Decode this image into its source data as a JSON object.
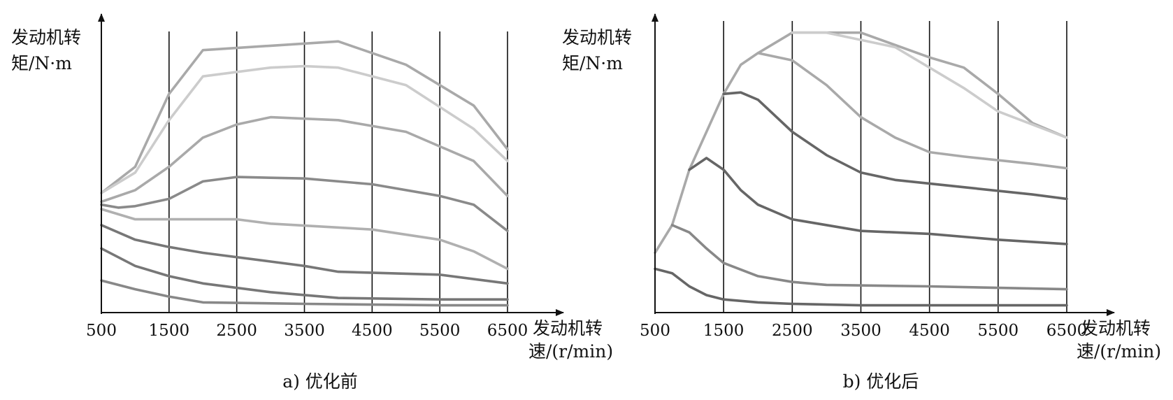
{
  "chart_data": [
    {
      "type": "line",
      "title": "",
      "caption": "a) 优化前",
      "ylabel_line1": "发动机转",
      "ylabel_line2": "矩/N·m",
      "xlabel_line1": "发动机转",
      "xlabel_line2": "速/(r/min)",
      "x_ticks": [
        "500",
        "1500",
        "2500",
        "3500",
        "4500",
        "5500",
        "6500"
      ],
      "xlim": [
        500,
        6500
      ],
      "ylim": [
        0,
        100
      ],
      "grid": "vertical",
      "series": [
        {
          "color": "#a9a9a9",
          "points": [
            [
              500,
              41
            ],
            [
              1000,
              50
            ],
            [
              1500,
              75
            ],
            [
              2000,
              90
            ],
            [
              3000,
              91.5
            ],
            [
              4000,
              93
            ],
            [
              5000,
              85
            ],
            [
              6000,
              71
            ],
            [
              6500,
              56
            ]
          ]
        },
        {
          "color": "#cccccc",
          "points": [
            [
              500,
              41
            ],
            [
              1000,
              48
            ],
            [
              1500,
              66
            ],
            [
              2000,
              81
            ],
            [
              3000,
              84
            ],
            [
              3500,
              84.5
            ],
            [
              4000,
              84
            ],
            [
              5000,
              78
            ],
            [
              6000,
              63
            ],
            [
              6500,
              52
            ]
          ]
        },
        {
          "color": "#a9a9a9",
          "points": [
            [
              500,
              38
            ],
            [
              1000,
              42
            ],
            [
              1500,
              50
            ],
            [
              2000,
              60
            ],
            [
              2500,
              64.5
            ],
            [
              3000,
              67
            ],
            [
              4000,
              66
            ],
            [
              5000,
              62
            ],
            [
              6000,
              52
            ],
            [
              6500,
              40
            ]
          ]
        },
        {
          "color": "#8a8a8a",
          "points": [
            [
              500,
              37
            ],
            [
              750,
              36
            ],
            [
              1000,
              36.5
            ],
            [
              1500,
              39
            ],
            [
              2000,
              45
            ],
            [
              2500,
              46.5
            ],
            [
              3500,
              46
            ],
            [
              4500,
              44
            ],
            [
              5500,
              40
            ],
            [
              6000,
              37
            ],
            [
              6500,
              28
            ]
          ]
        },
        {
          "color": "#b0b0b0",
          "points": [
            [
              500,
              35.5
            ],
            [
              1000,
              32
            ],
            [
              1500,
              32
            ],
            [
              2500,
              32
            ],
            [
              3000,
              30.5
            ],
            [
              4500,
              28.5
            ],
            [
              5500,
              25
            ],
            [
              6000,
              21
            ],
            [
              6500,
              15
            ]
          ]
        },
        {
          "color": "#777777",
          "points": [
            [
              500,
              30
            ],
            [
              1000,
              25
            ],
            [
              1500,
              22.5
            ],
            [
              2000,
              20.5
            ],
            [
              3000,
              17.5
            ],
            [
              3500,
              16
            ],
            [
              4000,
              14
            ],
            [
              5500,
              13
            ],
            [
              6500,
              10
            ]
          ]
        },
        {
          "color": "#777777",
          "points": [
            [
              500,
              22
            ],
            [
              1000,
              16
            ],
            [
              1500,
              12.5
            ],
            [
              2000,
              10
            ],
            [
              3000,
              7
            ],
            [
              4000,
              5
            ],
            [
              5500,
              4.5
            ],
            [
              6500,
              4.5
            ]
          ]
        },
        {
          "color": "#888888",
          "points": [
            [
              500,
              11
            ],
            [
              1000,
              8
            ],
            [
              1500,
              5.5
            ],
            [
              2000,
              3.5
            ],
            [
              3500,
              3
            ],
            [
              5500,
              2.5
            ],
            [
              6500,
              2.5
            ]
          ]
        }
      ]
    },
    {
      "type": "line",
      "title": "",
      "caption": "b) 优化后",
      "ylabel_line1": "发动机转",
      "ylabel_line2": "矩/N·m",
      "xlabel_line1": "发动机转",
      "xlabel_line2": "速/(r/min)",
      "x_ticks": [
        "500",
        "1500",
        "2500",
        "3500",
        "4500",
        "5500",
        "6500"
      ],
      "xlim": [
        500,
        6500
      ],
      "ylim": [
        0,
        100
      ],
      "grid": "vertical",
      "series": [
        {
          "color": "#a9a9a9",
          "points": [
            [
              500,
              20.5
            ],
            [
              750,
              30
            ],
            [
              1000,
              49
            ],
            [
              1500,
              75
            ],
            [
              1750,
              85
            ],
            [
              2000,
              89
            ],
            [
              2500,
              96
            ],
            [
              3500,
              96
            ],
            [
              4500,
              87.5
            ],
            [
              5000,
              84
            ],
            [
              5500,
              75
            ],
            [
              6000,
              65
            ],
            [
              6500,
              60
            ]
          ]
        },
        {
          "color": "#cccccc",
          "points": [
            [
              2500,
              96
            ],
            [
              3000,
              96
            ],
            [
              4000,
              91
            ],
            [
              4500,
              84
            ],
            [
              5000,
              77
            ],
            [
              5500,
              69
            ],
            [
              6500,
              60
            ]
          ]
        },
        {
          "color": "#a9a9a9",
          "points": [
            [
              2000,
              89
            ],
            [
              2500,
              86.5
            ],
            [
              3000,
              78
            ],
            [
              3500,
              67
            ],
            [
              4000,
              60
            ],
            [
              4500,
              55
            ],
            [
              5000,
              53.5
            ],
            [
              6000,
              51
            ],
            [
              6500,
              49.5
            ]
          ]
        },
        {
          "color": "#666666",
          "points": [
            [
              1500,
              75
            ],
            [
              1750,
              75.5
            ],
            [
              2000,
              73
            ],
            [
              2500,
              62
            ],
            [
              3000,
              54
            ],
            [
              3500,
              48
            ],
            [
              4000,
              45.5
            ],
            [
              5000,
              43
            ],
            [
              6000,
              40.5
            ],
            [
              6500,
              39
            ]
          ]
        },
        {
          "color": "#666666",
          "points": [
            [
              1000,
              49
            ],
            [
              1250,
              53
            ],
            [
              1500,
              49
            ],
            [
              1750,
              42
            ],
            [
              2000,
              37
            ],
            [
              2500,
              32
            ],
            [
              3500,
              28
            ],
            [
              4500,
              27
            ],
            [
              5500,
              25
            ],
            [
              6500,
              23.5
            ]
          ]
        },
        {
          "color": "#888888",
          "points": [
            [
              750,
              30
            ],
            [
              1000,
              27.5
            ],
            [
              1250,
              22
            ],
            [
              1500,
              17
            ],
            [
              2000,
              12.5
            ],
            [
              2500,
              10.5
            ],
            [
              3000,
              9.5
            ],
            [
              4500,
              9
            ],
            [
              5500,
              8.5
            ],
            [
              6500,
              8
            ]
          ]
        },
        {
          "color": "#666666",
          "points": [
            [
              500,
              15
            ],
            [
              750,
              13.5
            ],
            [
              1000,
              9
            ],
            [
              1250,
              6
            ],
            [
              1500,
              4.5
            ],
            [
              2000,
              3.5
            ],
            [
              2500,
              3
            ],
            [
              3500,
              2.5
            ],
            [
              5500,
              2.5
            ],
            [
              6500,
              2.5
            ]
          ]
        }
      ]
    }
  ]
}
